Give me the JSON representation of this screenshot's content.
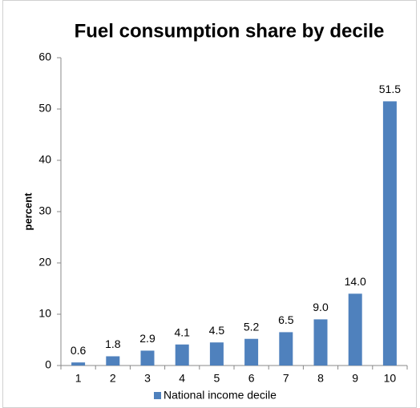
{
  "chart_data": {
    "type": "bar",
    "title": "Fuel consumption share by decile",
    "y_label": "percent",
    "categories": [
      "1",
      "2",
      "3",
      "4",
      "5",
      "6",
      "7",
      "8",
      "9",
      "10"
    ],
    "series": [
      {
        "name": "National income decile",
        "color": "#4f81bd",
        "values": [
          0.6,
          1.8,
          2.9,
          4.1,
          4.5,
          5.2,
          6.5,
          9.0,
          14.0,
          51.5
        ],
        "value_labels": [
          "0.6",
          "1.8",
          "2.9",
          "4.1",
          "4.5",
          "5.2",
          "6.5",
          "9.0",
          "14.0",
          "51.5"
        ]
      }
    ],
    "ylim": [
      0,
      60
    ],
    "yticks": [
      0,
      10,
      20,
      30,
      40,
      50,
      60
    ],
    "grid": false,
    "legend": "bottom"
  }
}
